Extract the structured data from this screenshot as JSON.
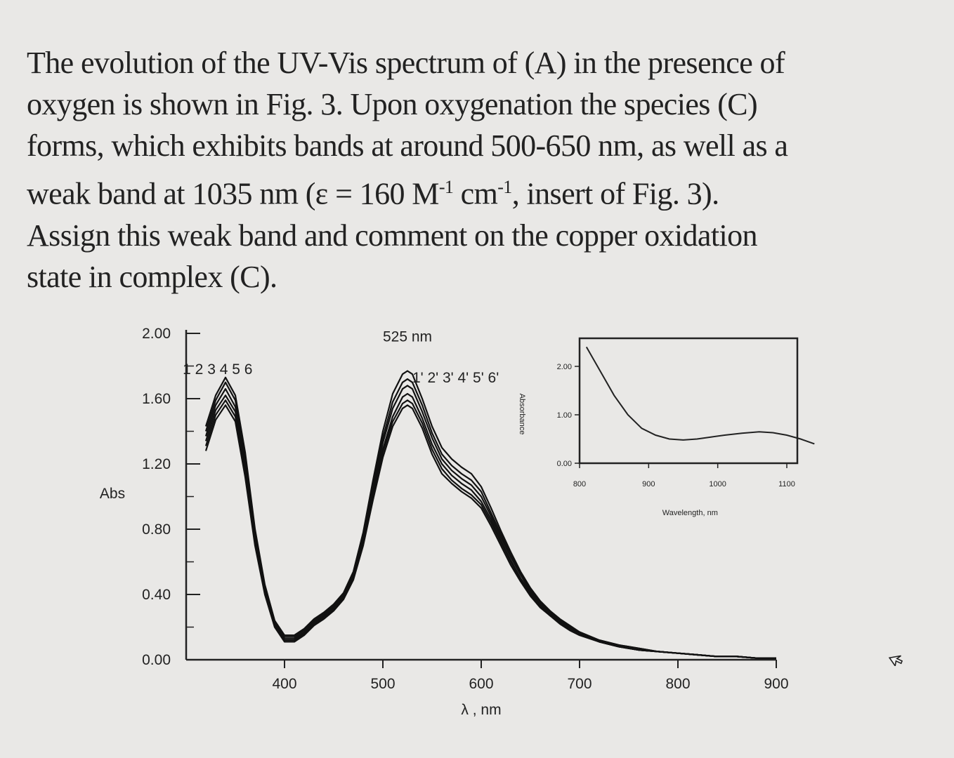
{
  "paragraph": {
    "line1": "The evolution of the UV-Vis spectrum of (A) in the presence of",
    "line2": "oxygen is shown in Fig. 3. Upon oxygenation the species (C)",
    "line3": "forms, which exhibits bands at around 500-650 nm, as well as a",
    "line4_a": "weak band at 1035 nm (ε = 160 M",
    "line4_sup1": "-1",
    "line4_b": " cm",
    "line4_sup2": "-1",
    "line4_c": ", insert of Fig. 3).",
    "line5": "Assign this weak band and comment on the copper oxidation",
    "line6": "state in complex (C)."
  },
  "chart_data": [
    {
      "type": "line",
      "title": "",
      "xlabel": "λ , nm",
      "ylabel": "Abs",
      "xlim": [
        300,
        900
      ],
      "ylim": [
        0,
        2.0
      ],
      "x_ticks": [
        400,
        500,
        600,
        700,
        800,
        900
      ],
      "x_tick_labels": [
        "400",
        "500",
        "600",
        "700",
        "800",
        "900"
      ],
      "y_ticks": [
        0,
        0.4,
        0.8,
        1.2,
        1.6,
        2.0
      ],
      "y_tick_labels": [
        "0.00",
        "0.40",
        "0.80",
        "1.20",
        "1.60",
        "2.00"
      ],
      "annotations": [
        {
          "text": "525 nm",
          "x": 525,
          "y": 1.95
        },
        {
          "text": "1 2 3 4 5 6",
          "x": 332,
          "y": 1.75
        },
        {
          "text": "1' 2' 3' 4' 5' 6'",
          "x": 574,
          "y": 1.7
        }
      ],
      "x": [
        320,
        330,
        340,
        350,
        360,
        370,
        380,
        390,
        400,
        410,
        420,
        430,
        440,
        450,
        460,
        470,
        480,
        490,
        500,
        510,
        520,
        525,
        530,
        540,
        550,
        560,
        570,
        580,
        590,
        600,
        610,
        620,
        630,
        640,
        650,
        660,
        670,
        680,
        690,
        700,
        720,
        740,
        760,
        780,
        800,
        820,
        840,
        860,
        880,
        900
      ],
      "series": [
        {
          "name": "1",
          "values": [
            1.43,
            1.62,
            1.73,
            1.62,
            1.27,
            0.8,
            0.46,
            0.24,
            0.15,
            0.15,
            0.19,
            0.25,
            0.29,
            0.34,
            0.41,
            0.54,
            0.78,
            1.1,
            1.4,
            1.63,
            1.75,
            1.77,
            1.75,
            1.6,
            1.43,
            1.3,
            1.23,
            1.18,
            1.14,
            1.06,
            0.93,
            0.79,
            0.66,
            0.54,
            0.44,
            0.36,
            0.3,
            0.25,
            0.21,
            0.17,
            0.12,
            0.09,
            0.07,
            0.05,
            0.04,
            0.03,
            0.02,
            0.02,
            0.01,
            0.01
          ]
        },
        {
          "name": "2",
          "values": [
            1.4,
            1.59,
            1.7,
            1.59,
            1.24,
            0.78,
            0.44,
            0.23,
            0.14,
            0.14,
            0.18,
            0.24,
            0.28,
            0.33,
            0.4,
            0.53,
            0.76,
            1.07,
            1.36,
            1.58,
            1.7,
            1.72,
            1.7,
            1.56,
            1.39,
            1.26,
            1.19,
            1.14,
            1.1,
            1.03,
            0.9,
            0.77,
            0.64,
            0.53,
            0.43,
            0.35,
            0.29,
            0.24,
            0.2,
            0.17,
            0.12,
            0.09,
            0.07,
            0.05,
            0.04,
            0.03,
            0.02,
            0.02,
            0.01,
            0.01
          ]
        },
        {
          "name": "3",
          "values": [
            1.37,
            1.56,
            1.66,
            1.55,
            1.21,
            0.76,
            0.43,
            0.22,
            0.13,
            0.13,
            0.17,
            0.23,
            0.27,
            0.32,
            0.39,
            0.52,
            0.75,
            1.05,
            1.33,
            1.54,
            1.66,
            1.68,
            1.66,
            1.52,
            1.36,
            1.23,
            1.16,
            1.11,
            1.07,
            1.0,
            0.88,
            0.75,
            0.63,
            0.52,
            0.42,
            0.35,
            0.29,
            0.24,
            0.2,
            0.16,
            0.11,
            0.08,
            0.06,
            0.05,
            0.04,
            0.03,
            0.02,
            0.02,
            0.01,
            0.01
          ]
        },
        {
          "name": "4",
          "values": [
            1.34,
            1.53,
            1.62,
            1.52,
            1.18,
            0.74,
            0.42,
            0.21,
            0.12,
            0.12,
            0.16,
            0.22,
            0.26,
            0.31,
            0.38,
            0.51,
            0.73,
            1.02,
            1.29,
            1.49,
            1.61,
            1.63,
            1.61,
            1.48,
            1.32,
            1.2,
            1.13,
            1.08,
            1.04,
            0.97,
            0.86,
            0.73,
            0.61,
            0.5,
            0.41,
            0.34,
            0.28,
            0.23,
            0.19,
            0.16,
            0.11,
            0.08,
            0.06,
            0.05,
            0.04,
            0.03,
            0.02,
            0.02,
            0.01,
            0.01
          ]
        },
        {
          "name": "5",
          "values": [
            1.31,
            1.5,
            1.59,
            1.49,
            1.15,
            0.72,
            0.41,
            0.21,
            0.12,
            0.12,
            0.16,
            0.22,
            0.26,
            0.31,
            0.38,
            0.5,
            0.72,
            1.0,
            1.27,
            1.46,
            1.57,
            1.59,
            1.57,
            1.45,
            1.29,
            1.17,
            1.1,
            1.05,
            1.01,
            0.95,
            0.84,
            0.72,
            0.6,
            0.49,
            0.4,
            0.33,
            0.27,
            0.23,
            0.19,
            0.16,
            0.11,
            0.08,
            0.06,
            0.05,
            0.04,
            0.03,
            0.02,
            0.02,
            0.01,
            0.01
          ]
        },
        {
          "name": "6",
          "values": [
            1.28,
            1.47,
            1.56,
            1.46,
            1.12,
            0.7,
            0.4,
            0.2,
            0.11,
            0.11,
            0.15,
            0.21,
            0.25,
            0.3,
            0.37,
            0.49,
            0.7,
            0.98,
            1.24,
            1.43,
            1.54,
            1.56,
            1.54,
            1.42,
            1.26,
            1.14,
            1.08,
            1.03,
            0.99,
            0.93,
            0.82,
            0.7,
            0.58,
            0.48,
            0.39,
            0.32,
            0.27,
            0.22,
            0.18,
            0.15,
            0.11,
            0.08,
            0.06,
            0.05,
            0.04,
            0.03,
            0.02,
            0.02,
            0.01,
            0.01
          ]
        }
      ]
    },
    {
      "type": "line",
      "title": "",
      "xlabel": "Wavelength, nm",
      "ylabel": "Absorbance",
      "xlim": [
        800,
        1150
      ],
      "ylim": [
        0,
        2.5
      ],
      "x_ticks": [
        800,
        900,
        1000,
        1100
      ],
      "x_tick_labels": [
        "800",
        "900",
        "1000",
        "1100"
      ],
      "y_ticks": [
        0,
        1.0,
        2.0
      ],
      "y_tick_labels": [
        "0.00",
        "1.00",
        "2.00"
      ],
      "x": [
        810,
        830,
        850,
        870,
        890,
        910,
        930,
        950,
        970,
        990,
        1010,
        1035,
        1060,
        1080,
        1100,
        1120,
        1140
      ],
      "series": [
        {
          "name": "",
          "values": [
            2.4,
            1.9,
            1.4,
            1.0,
            0.72,
            0.58,
            0.5,
            0.48,
            0.5,
            0.54,
            0.58,
            0.62,
            0.65,
            0.63,
            0.58,
            0.5,
            0.4
          ]
        }
      ]
    }
  ]
}
